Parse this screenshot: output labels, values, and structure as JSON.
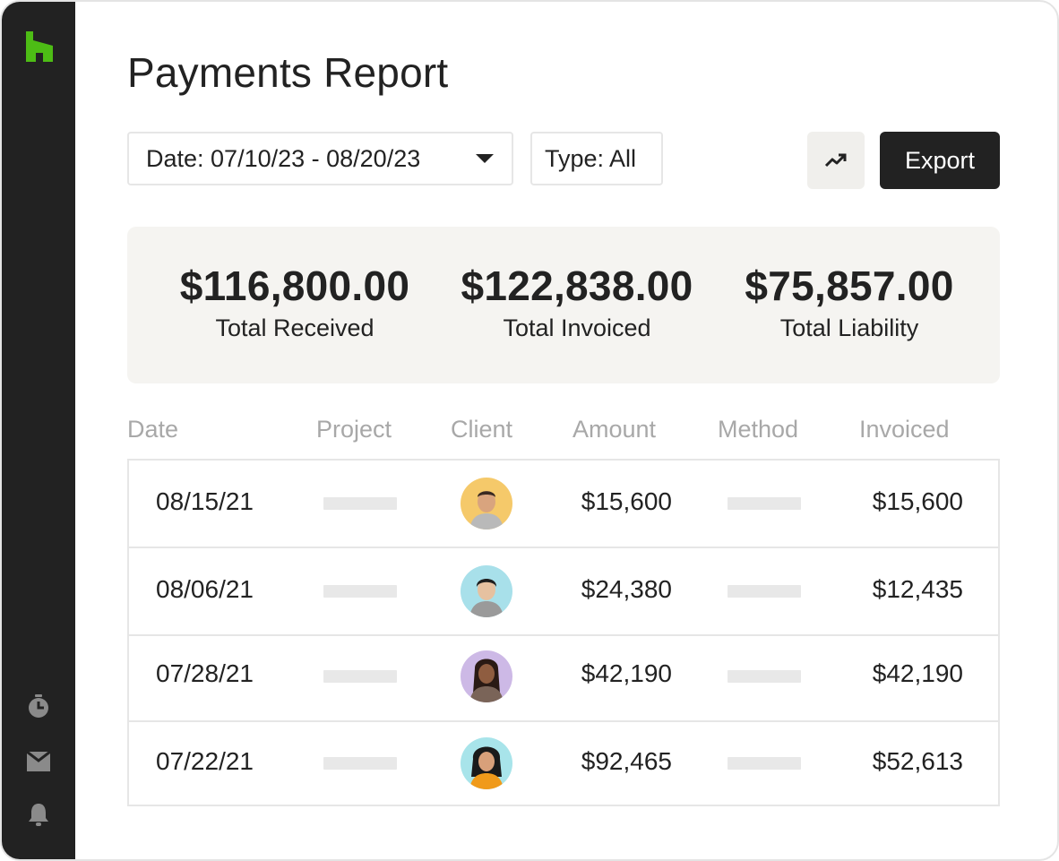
{
  "page": {
    "title": "Payments Report"
  },
  "sidebar": {
    "logo": "houzz-logo",
    "icons": [
      "timer-icon",
      "inbox-icon",
      "bell-icon"
    ],
    "logo_color": "#4dbc15"
  },
  "filters": {
    "date_label": "Date: 07/10/23 - 08/20/23",
    "type_label": "Type: All"
  },
  "toolbar": {
    "chart_icon": "trend-chart-icon",
    "export_label": "Export"
  },
  "summary": [
    {
      "value": "$116,800.00",
      "label": "Total Received"
    },
    {
      "value": "$122,838.00",
      "label": "Total Invoiced"
    },
    {
      "value": "$75,857.00",
      "label": "Total Liability"
    }
  ],
  "table": {
    "columns": [
      "Date",
      "Project",
      "Client",
      "Amount",
      "Method",
      "Invoiced"
    ],
    "rows": [
      {
        "date": "08/15/21",
        "amount": "$15,600",
        "invoiced": "$15,600",
        "avatar_bg": "#f5c96a"
      },
      {
        "date": "08/06/21",
        "amount": "$24,380",
        "invoiced": "$12,435",
        "avatar_bg": "#a8e0ea"
      },
      {
        "date": "07/28/21",
        "amount": "$42,190",
        "invoiced": "$42,190",
        "avatar_bg": "#cdb9e6"
      },
      {
        "date": "07/22/21",
        "amount": "$92,465",
        "invoiced": "$52,613",
        "avatar_bg": "#a8e4ea"
      }
    ]
  }
}
